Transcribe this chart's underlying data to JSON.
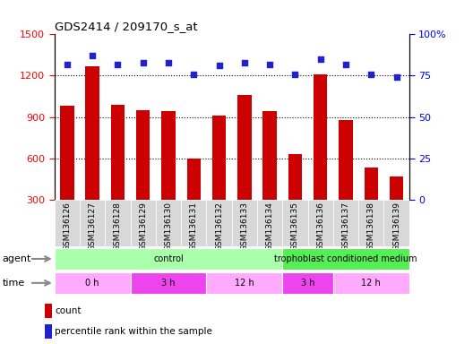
{
  "title": "GDS2414 / 209170_s_at",
  "samples": [
    "GSM136126",
    "GSM136127",
    "GSM136128",
    "GSM136129",
    "GSM136130",
    "GSM136131",
    "GSM136132",
    "GSM136133",
    "GSM136134",
    "GSM136135",
    "GSM136136",
    "GSM136137",
    "GSM136138",
    "GSM136139"
  ],
  "counts": [
    980,
    1270,
    990,
    950,
    940,
    600,
    910,
    1060,
    940,
    630,
    1210,
    880,
    530,
    470
  ],
  "percentiles": [
    82,
    87,
    82,
    83,
    83,
    76,
    81,
    83,
    82,
    76,
    85,
    82,
    76,
    74
  ],
  "bar_color": "#cc0000",
  "dot_color": "#2222cc",
  "ylim_left": [
    300,
    1500
  ],
  "ylim_right": [
    0,
    100
  ],
  "yticks_left": [
    300,
    600,
    900,
    1200,
    1500
  ],
  "yticks_right": [
    0,
    25,
    50,
    75,
    100
  ],
  "agent_segments": [
    {
      "text": "control",
      "start": 0,
      "end": 9,
      "color": "#aaffaa"
    },
    {
      "text": "trophoblast conditioned medium",
      "start": 9,
      "end": 14,
      "color": "#55ee55"
    }
  ],
  "time_segments": [
    {
      "text": "0 h",
      "start": 0,
      "end": 3,
      "color": "#ffaaff"
    },
    {
      "text": "3 h",
      "start": 3,
      "end": 6,
      "color": "#ee44ee"
    },
    {
      "text": "12 h",
      "start": 6,
      "end": 9,
      "color": "#ffaaff"
    },
    {
      "text": "3 h",
      "start": 9,
      "end": 11,
      "color": "#ee44ee"
    },
    {
      "text": "12 h",
      "start": 11,
      "end": 14,
      "color": "#ffaaff"
    }
  ],
  "bar_width": 0.55,
  "tick_label_size": 6.5,
  "ticklabel_bg": "#d8d8d8"
}
